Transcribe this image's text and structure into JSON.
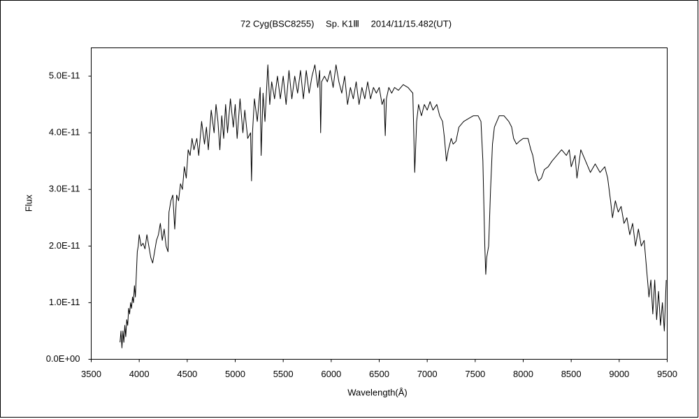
{
  "chart_data": {
    "type": "line",
    "title": "72 Cyg(BSC8255)　 Sp. K1Ⅲ　 2014/11/15.482(UT)",
    "x_label": "Wavelength(Å)",
    "y_label": "Flux",
    "xlim": [
      3500,
      9500
    ],
    "xticks": [
      3500,
      4000,
      4500,
      5000,
      5500,
      6000,
      6500,
      7000,
      7500,
      8000,
      8500,
      9000,
      9500
    ],
    "ylim": [
      0,
      5.5e-11
    ],
    "yticks": [
      {
        "value": 0,
        "label": "0.0E+00"
      },
      {
        "value": 1e-11,
        "label": "1.0E-11"
      },
      {
        "value": 2e-11,
        "label": "2.0E-11"
      },
      {
        "value": 3e-11,
        "label": "3.0E-11"
      },
      {
        "value": 4e-11,
        "label": "4.0E-11"
      },
      {
        "value": 5e-11,
        "label": "5.0E-11"
      }
    ],
    "grid": false,
    "series": [
      {
        "color": "#000000",
        "x": [
          3800,
          3810,
          3820,
          3830,
          3840,
          3850,
          3860,
          3870,
          3880,
          3890,
          3900,
          3910,
          3920,
          3930,
          3940,
          3950,
          3960,
          3970,
          3980,
          3990,
          4000,
          4020,
          4040,
          4060,
          4080,
          4100,
          4120,
          4140,
          4160,
          4180,
          4200,
          4220,
          4240,
          4260,
          4280,
          4300,
          4310,
          4330,
          4350,
          4370,
          4390,
          4410,
          4430,
          4450,
          4470,
          4490,
          4510,
          4530,
          4550,
          4570,
          4600,
          4620,
          4650,
          4680,
          4700,
          4720,
          4750,
          4780,
          4800,
          4820,
          4840,
          4860,
          4880,
          4900,
          4920,
          4950,
          4980,
          5000,
          5020,
          5050,
          5080,
          5100,
          5130,
          5160,
          5170,
          5180,
          5200,
          5230,
          5260,
          5270,
          5290,
          5310,
          5340,
          5360,
          5380,
          5410,
          5440,
          5470,
          5500,
          5530,
          5560,
          5590,
          5620,
          5650,
          5680,
          5710,
          5740,
          5770,
          5800,
          5830,
          5860,
          5880,
          5890,
          5900,
          5930,
          5960,
          5990,
          6020,
          6050,
          6080,
          6110,
          6140,
          6170,
          6200,
          6230,
          6260,
          6290,
          6320,
          6350,
          6380,
          6410,
          6440,
          6470,
          6500,
          6530,
          6550,
          6563,
          6575,
          6600,
          6630,
          6660,
          6700,
          6750,
          6800,
          6850,
          6870,
          6890,
          6910,
          6940,
          6970,
          7000,
          7030,
          7060,
          7100,
          7130,
          7160,
          7180,
          7200,
          7220,
          7250,
          7270,
          7300,
          7330,
          7380,
          7430,
          7480,
          7530,
          7560,
          7580,
          7600,
          7610,
          7620,
          7640,
          7660,
          7680,
          7700,
          7750,
          7800,
          7850,
          7880,
          7900,
          7930,
          7960,
          8000,
          8050,
          8080,
          8100,
          8130,
          8160,
          8190,
          8220,
          8260,
          8300,
          8350,
          8400,
          8450,
          8480,
          8500,
          8540,
          8560,
          8600,
          8650,
          8700,
          8750,
          8800,
          8850,
          8880,
          8910,
          8930,
          8960,
          8990,
          9020,
          9050,
          9080,
          9110,
          9140,
          9170,
          9200,
          9230,
          9260,
          9290,
          9310,
          9330,
          9350,
          9370,
          9390,
          9410,
          9430,
          9450,
          9470,
          9490
        ],
        "values": [
          3e-12,
          5e-12,
          2e-12,
          5e-12,
          3e-12,
          6e-12,
          4e-12,
          7e-12,
          6e-12,
          9e-12,
          8e-12,
          1e-11,
          9e-12,
          1.1e-11,
          1e-11,
          1.3e-11,
          1.1e-11,
          1.5e-11,
          1.9e-11,
          2e-11,
          2.2e-11,
          2e-11,
          2.05e-11,
          1.95e-11,
          2.2e-11,
          2e-11,
          1.8e-11,
          1.7e-11,
          1.9e-11,
          2.1e-11,
          2.2e-11,
          2.4e-11,
          2.1e-11,
          2.3e-11,
          2e-11,
          1.9e-11,
          2.6e-11,
          2.8e-11,
          2.9e-11,
          2.3e-11,
          2.9e-11,
          2.8e-11,
          3.1e-11,
          3e-11,
          3.4e-11,
          3.2e-11,
          3.7e-11,
          3.6e-11,
          3.9e-11,
          3.7e-11,
          3.9e-11,
          3.6e-11,
          4.2e-11,
          3.8e-11,
          4.1e-11,
          3.7e-11,
          4.4e-11,
          4e-11,
          4.5e-11,
          4.2e-11,
          3.7e-11,
          4.3e-11,
          3.9e-11,
          4.5e-11,
          4e-11,
          4.6e-11,
          4.1e-11,
          4.5e-11,
          3.9e-11,
          4.6e-11,
          4e-11,
          4.4e-11,
          3.9e-11,
          4e-11,
          3.15e-11,
          4e-11,
          4.6e-11,
          4.2e-11,
          4.8e-11,
          3.6e-11,
          4.7e-11,
          4.2e-11,
          5.2e-11,
          4.5e-11,
          4.9e-11,
          4.6e-11,
          5e-11,
          4.6e-11,
          5e-11,
          4.5e-11,
          5.1e-11,
          4.6e-11,
          5e-11,
          4.7e-11,
          5.1e-11,
          4.6e-11,
          5.1e-11,
          4.7e-11,
          5e-11,
          5.2e-11,
          4.8e-11,
          5.1e-11,
          4e-11,
          4.9e-11,
          5e-11,
          4.9e-11,
          5.1e-11,
          4.8e-11,
          5.2e-11,
          4.9e-11,
          4.7e-11,
          5e-11,
          4.5e-11,
          4.8e-11,
          4.6e-11,
          4.9e-11,
          4.5e-11,
          4.8e-11,
          4.6e-11,
          4.9e-11,
          4.6e-11,
          4.8e-11,
          4.7e-11,
          4.8e-11,
          4.5e-11,
          4.6e-11,
          3.95e-11,
          4.6e-11,
          4.8e-11,
          4.7e-11,
          4.8e-11,
          4.75e-11,
          4.85e-11,
          4.8e-11,
          4.7e-11,
          3.3e-11,
          4.2e-11,
          4.5e-11,
          4.3e-11,
          4.5e-11,
          4.4e-11,
          4.55e-11,
          4.4e-11,
          4.5e-11,
          4.3e-11,
          4.2e-11,
          3.9e-11,
          3.5e-11,
          3.7e-11,
          3.9e-11,
          3.8e-11,
          3.85e-11,
          4.1e-11,
          4.2e-11,
          4.25e-11,
          4.3e-11,
          4.3e-11,
          4.2e-11,
          3.5e-11,
          2e-11,
          1.5e-11,
          1.8e-11,
          2e-11,
          3e-11,
          3.8e-11,
          4.1e-11,
          4.3e-11,
          4.3e-11,
          4.2e-11,
          4.1e-11,
          3.9e-11,
          3.8e-11,
          3.85e-11,
          3.9e-11,
          3.9e-11,
          3.7e-11,
          3.6e-11,
          3.3e-11,
          3.15e-11,
          3.2e-11,
          3.35e-11,
          3.4e-11,
          3.5e-11,
          3.6e-11,
          3.7e-11,
          3.6e-11,
          3.7e-11,
          3.4e-11,
          3.6e-11,
          3.2e-11,
          3.7e-11,
          3.5e-11,
          3.3e-11,
          3.45e-11,
          3.3e-11,
          3.4e-11,
          3.2e-11,
          2.8e-11,
          2.5e-11,
          2.8e-11,
          2.6e-11,
          2.7e-11,
          2.4e-11,
          2.5e-11,
          2.2e-11,
          2.4e-11,
          2e-11,
          2.3e-11,
          2e-11,
          2.1e-11,
          1.5e-11,
          1.1e-11,
          1.4e-11,
          8e-12,
          1.4e-11,
          7e-12,
          1.2e-11,
          6e-12,
          1e-11,
          5e-12,
          1.4e-11
        ]
      }
    ]
  }
}
